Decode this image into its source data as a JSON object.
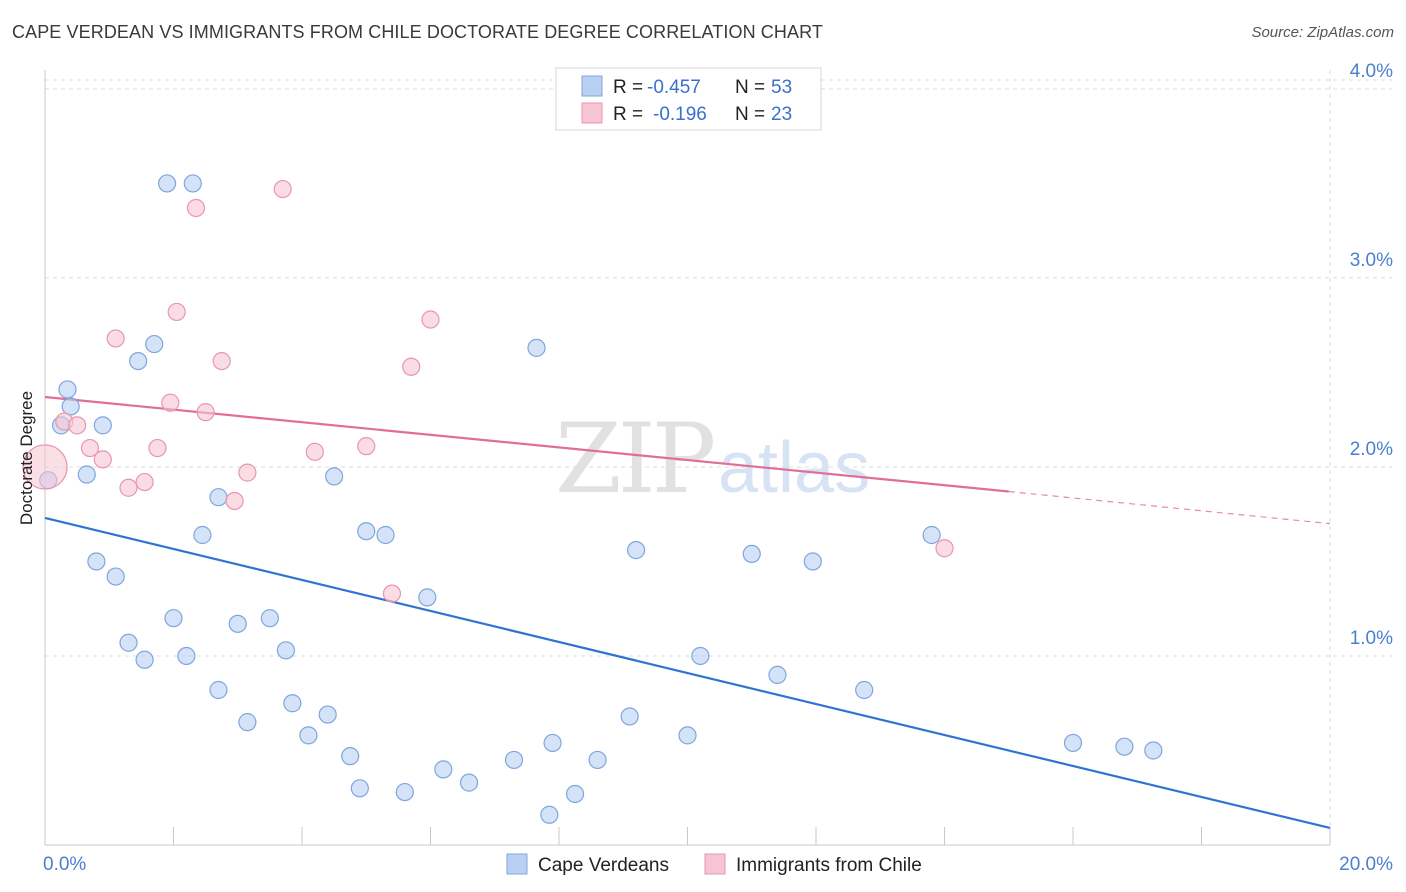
{
  "title": "CAPE VERDEAN VS IMMIGRANTS FROM CHILE DOCTORATE DEGREE CORRELATION CHART",
  "source": "Source: ZipAtlas.com",
  "watermark": {
    "zip": "ZIP",
    "atlas": "atlas"
  },
  "colors": {
    "blue_fill": "#b8d1f2",
    "blue_stroke": "#7fa6dc",
    "blue_line": "#2f74d0",
    "pink_fill": "#f7c4d3",
    "pink_stroke": "#e995b0",
    "pink_line": "#e06e96",
    "tick": "#4a7fd0",
    "grid": "#dddddd"
  },
  "legend": {
    "r_label": "R =",
    "n_label": "N =",
    "rows": [
      {
        "r": "-0.457",
        "n": "53",
        "color": "blue"
      },
      {
        "r": "-0.196",
        "n": "23",
        "color": "pink"
      }
    ]
  },
  "chart_data": {
    "type": "scatter",
    "title": "CAPE VERDEAN VS IMMIGRANTS FROM CHILE DOCTORATE DEGREE CORRELATION CHART",
    "xlabel": "",
    "ylabel": "Doctorate Degree",
    "xlim": [
      0,
      20
    ],
    "ylim": [
      0,
      4.1
    ],
    "x_tick_labels": [
      {
        "value": 0,
        "label": "0.0%"
      },
      {
        "value": 20,
        "label": "20.0%"
      }
    ],
    "y_ticks": [
      {
        "value": 1,
        "label": "1.0%"
      },
      {
        "value": 2,
        "label": "2.0%"
      },
      {
        "value": 3,
        "label": "3.0%"
      },
      {
        "value": 4,
        "label": "4.0%"
      }
    ],
    "grid": true,
    "legend_position": "bottom-center",
    "series": [
      {
        "name": "Cape Verdeans",
        "color": "blue",
        "points": [
          [
            0.05,
            1.93
          ],
          [
            0.25,
            2.22
          ],
          [
            0.35,
            2.41
          ],
          [
            0.4,
            2.32
          ],
          [
            0.65,
            1.96
          ],
          [
            0.9,
            2.22
          ],
          [
            0.8,
            1.5
          ],
          [
            1.1,
            1.42
          ],
          [
            1.3,
            1.07
          ],
          [
            1.45,
            2.56
          ],
          [
            1.55,
            0.98
          ],
          [
            1.7,
            2.65
          ],
          [
            1.9,
            3.5
          ],
          [
            2.0,
            1.2
          ],
          [
            2.2,
            1.0
          ],
          [
            2.3,
            3.5
          ],
          [
            2.45,
            1.64
          ],
          [
            2.7,
            0.82
          ],
          [
            2.7,
            1.84
          ],
          [
            3.0,
            1.17
          ],
          [
            3.15,
            0.65
          ],
          [
            3.5,
            1.2
          ],
          [
            3.75,
            1.03
          ],
          [
            3.85,
            0.75
          ],
          [
            4.1,
            0.58
          ],
          [
            4.4,
            0.69
          ],
          [
            4.5,
            1.95
          ],
          [
            4.75,
            0.47
          ],
          [
            4.9,
            0.3
          ],
          [
            5.0,
            1.66
          ],
          [
            5.3,
            1.64
          ],
          [
            5.6,
            0.28
          ],
          [
            5.95,
            1.31
          ],
          [
            6.2,
            0.4
          ],
          [
            6.6,
            0.33
          ],
          [
            7.3,
            0.45
          ],
          [
            7.65,
            2.63
          ],
          [
            7.9,
            0.54
          ],
          [
            7.85,
            0.16
          ],
          [
            8.25,
            0.27
          ],
          [
            8.6,
            0.45
          ],
          [
            9.1,
            0.68
          ],
          [
            9.2,
            1.56
          ],
          [
            10.0,
            0.58
          ],
          [
            10.2,
            1.0
          ],
          [
            11.0,
            1.54
          ],
          [
            11.4,
            0.9
          ],
          [
            11.95,
            1.5
          ],
          [
            12.75,
            0.82
          ],
          [
            13.8,
            1.64
          ],
          [
            16.0,
            0.54
          ],
          [
            16.8,
            0.52
          ],
          [
            17.25,
            0.5
          ]
        ],
        "trend": {
          "x1": 0,
          "y1": 1.73,
          "x2": 20,
          "y2": 0.09
        }
      },
      {
        "name": "Immigrants from Chile",
        "color": "pink",
        "points": [
          [
            0.0,
            2.0
          ],
          [
            0.3,
            2.24
          ],
          [
            0.5,
            2.22
          ],
          [
            0.7,
            2.1
          ],
          [
            0.9,
            2.04
          ],
          [
            1.1,
            2.68
          ],
          [
            1.3,
            1.89
          ],
          [
            1.55,
            1.92
          ],
          [
            1.75,
            2.1
          ],
          [
            1.95,
            2.34
          ],
          [
            2.05,
            2.82
          ],
          [
            2.35,
            3.37
          ],
          [
            2.5,
            2.29
          ],
          [
            2.75,
            2.56
          ],
          [
            2.95,
            1.82
          ],
          [
            3.15,
            1.97
          ],
          [
            3.7,
            3.47
          ],
          [
            4.2,
            2.08
          ],
          [
            5.0,
            2.11
          ],
          [
            5.4,
            1.33
          ],
          [
            5.7,
            2.53
          ],
          [
            6.0,
            2.78
          ],
          [
            14.0,
            1.57
          ]
        ],
        "trend": {
          "x1": 0,
          "y1": 2.37,
          "x2": 15.0,
          "y2": 1.87
        },
        "trend_dashed": {
          "x1": 15.0,
          "y1": 1.87,
          "x2": 20,
          "y2": 1.7
        }
      }
    ]
  }
}
